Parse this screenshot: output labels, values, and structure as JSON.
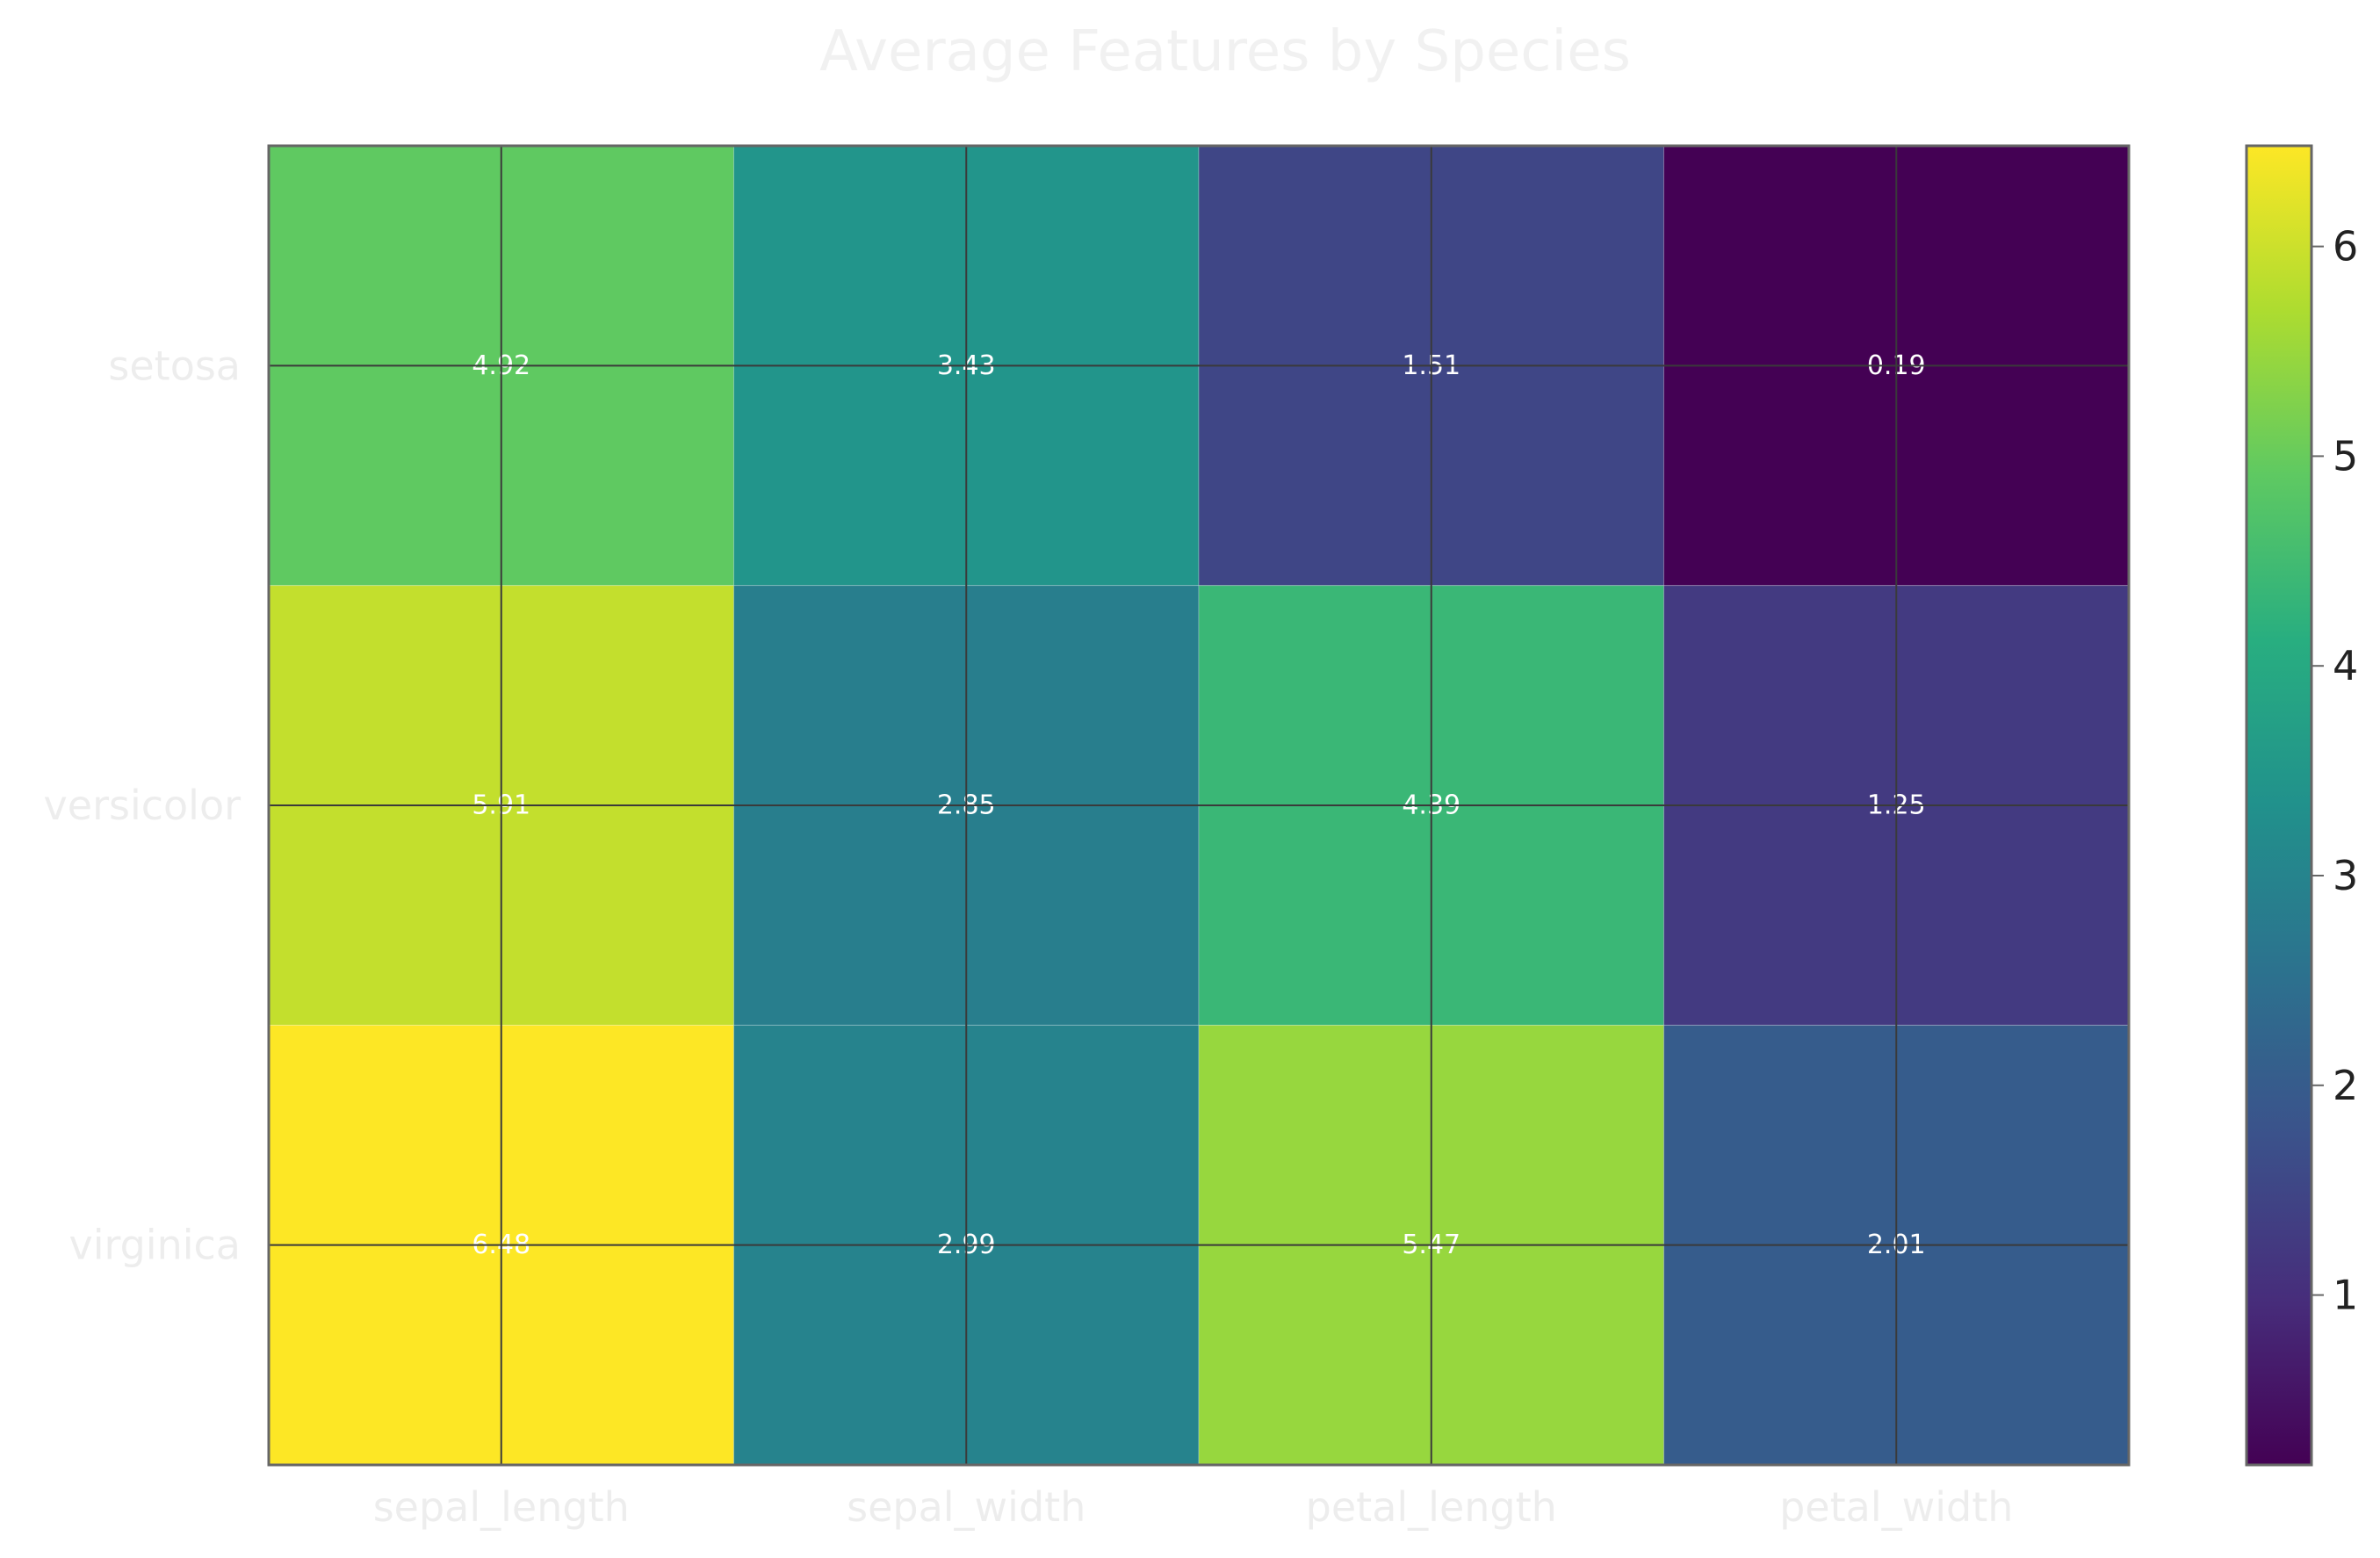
{
  "chart_data": {
    "type": "heatmap",
    "title": "Average Features by Species",
    "x_categories": [
      "sepal_length",
      "sepal_width",
      "petal_length",
      "petal_width"
    ],
    "y_categories": [
      "setosa",
      "versicolor",
      "virginica"
    ],
    "values": [
      [
        4.92,
        3.43,
        1.51,
        0.19
      ],
      [
        5.91,
        2.85,
        4.39,
        1.25
      ],
      [
        6.48,
        2.99,
        5.47,
        2.01
      ]
    ],
    "value_labels": [
      [
        "4.92",
        "3.43",
        "1.51",
        "0.19"
      ],
      [
        "5.91",
        "2.85",
        "4.39",
        "1.25"
      ],
      [
        "6.48",
        "2.99",
        "5.47",
        "2.01"
      ]
    ],
    "colormap": "viridis",
    "vmin": 0.19,
    "vmax": 6.48,
    "colorbar_ticks": [
      1,
      2,
      3,
      4,
      5,
      6
    ],
    "colorbar_tick_labels": [
      "1",
      "2",
      "3",
      "4",
      "5",
      "6"
    ],
    "grid": true,
    "xlabel": "",
    "ylabel": ""
  }
}
